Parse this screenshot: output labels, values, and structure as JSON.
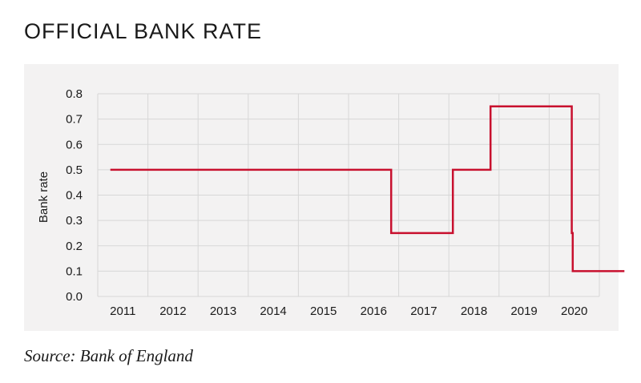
{
  "page": {
    "title": "OFFICIAL BANK RATE",
    "source": "Source: Bank of England"
  },
  "chart_data": {
    "type": "line",
    "step": true,
    "title": "OFFICIAL BANK RATE",
    "xlabel": "",
    "ylabel": "Bank rate",
    "categories": [
      "2011",
      "2012",
      "2013",
      "2014",
      "2015",
      "2016",
      "2017",
      "2018",
      "2019",
      "2020"
    ],
    "ylim": [
      0,
      0.8
    ],
    "yticks": [
      "0.0",
      "0.1",
      "0.2",
      "0.3",
      "0.4",
      "0.5",
      "0.6",
      "0.7",
      "0.8"
    ],
    "xlim": [
      2010.75,
      2020.75
    ],
    "grid": true,
    "line_color": "#c8102e",
    "series": [
      {
        "name": "Bank rate",
        "points": [
          [
            2011.0,
            0.5
          ],
          [
            2016.6,
            0.5
          ],
          [
            2016.6,
            0.25
          ],
          [
            2017.83,
            0.25
          ],
          [
            2017.83,
            0.5
          ],
          [
            2018.58,
            0.5
          ],
          [
            2018.58,
            0.75
          ],
          [
            2020.2,
            0.75
          ],
          [
            2020.2,
            0.25
          ],
          [
            2020.22,
            0.25
          ],
          [
            2020.22,
            0.1
          ],
          [
            2021.25,
            0.1
          ]
        ]
      }
    ]
  }
}
